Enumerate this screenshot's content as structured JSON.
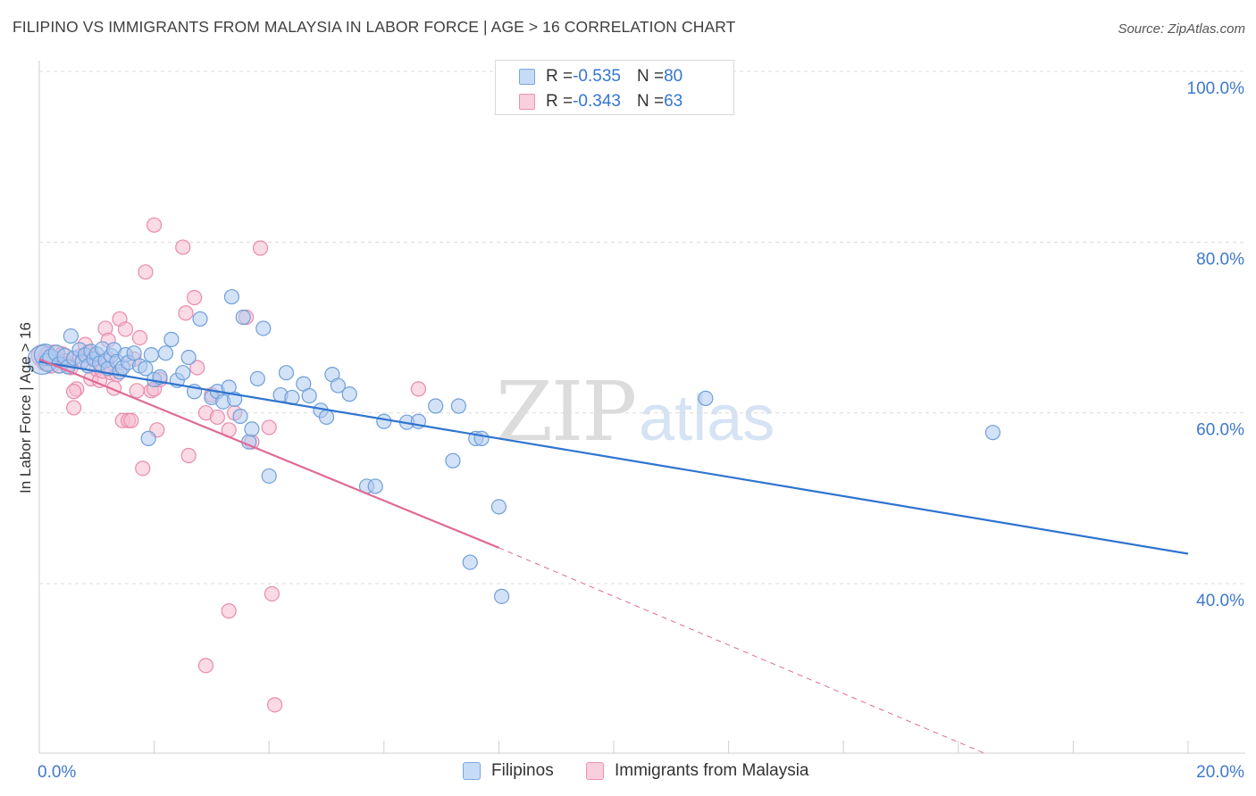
{
  "header": {
    "title": "FILIPINO VS IMMIGRANTS FROM MALAYSIA IN LABOR FORCE | AGE > 16 CORRELATION CHART",
    "source": "Source: ZipAtlas.com"
  },
  "legend": {
    "rows": [
      {
        "r_label": "R = ",
        "r_value": "-0.535",
        "n_label": "N = ",
        "n_value": "80"
      },
      {
        "r_label": "R = ",
        "r_value": "-0.343",
        "n_label": "N = ",
        "n_value": "63"
      }
    ]
  },
  "bottom_legend": [
    "Filipinos",
    "Immigrants from Malaysia"
  ],
  "watermark": {
    "part1": "ZIP",
    "part2": "atlas"
  },
  "colors": {
    "blue_fill": "#aecbf0",
    "blue_stroke": "#6f9fd8",
    "blue_line": "#2f74cf",
    "pink_fill": "#f5bcd0",
    "pink_stroke": "#e98aae",
    "pink_line": "#e06a96",
    "axis_label": "#3f78cc"
  },
  "chart_data": {
    "type": "scatter",
    "title": "FILIPINO VS IMMIGRANTS FROM MALAYSIA IN LABOR FORCE | AGE > 16 CORRELATION CHART",
    "xlabel": "",
    "ylabel": "In Labor Force | Age > 16",
    "xlim": [
      0,
      20
    ],
    "ylim": [
      20,
      102
    ],
    "x_tick_labels": [
      "0.0%",
      "20.0%"
    ],
    "y_ticks": [
      40,
      60,
      80,
      100
    ],
    "y_tick_labels": [
      "40.0%",
      "60.0%",
      "80.0%",
      "100.0%"
    ],
    "grid": "horizontal dashed",
    "series": [
      {
        "name": "Filipinos",
        "R": -0.535,
        "N": 80,
        "trend": {
          "x": [
            0,
            20
          ],
          "y": [
            66.0,
            43.5
          ],
          "dashed_after": null
        },
        "points": [
          {
            "x": 0.05,
            "y": 66.2,
            "s": 16
          },
          {
            "x": 0.1,
            "y": 66.8,
            "s": 12
          },
          {
            "x": 0.15,
            "y": 65.9,
            "s": 10
          },
          {
            "x": 0.2,
            "y": 66.5,
            "s": 9
          },
          {
            "x": 0.3,
            "y": 67.0,
            "s": 9
          },
          {
            "x": 0.35,
            "y": 65.6,
            "s": 9
          },
          {
            "x": 0.45,
            "y": 66.6,
            "s": 9
          },
          {
            "x": 0.5,
            "y": 65.4,
            "s": 8
          },
          {
            "x": 0.55,
            "y": 69.0,
            "s": 8
          },
          {
            "x": 0.6,
            "y": 66.4,
            "s": 8
          },
          {
            "x": 0.7,
            "y": 67.4,
            "s": 8
          },
          {
            "x": 0.75,
            "y": 66.0,
            "s": 8
          },
          {
            "x": 0.8,
            "y": 66.8,
            "s": 8
          },
          {
            "x": 0.85,
            "y": 65.5,
            "s": 8
          },
          {
            "x": 0.9,
            "y": 67.2,
            "s": 8
          },
          {
            "x": 0.95,
            "y": 66.3,
            "s": 8
          },
          {
            "x": 1.0,
            "y": 66.9,
            "s": 8
          },
          {
            "x": 1.05,
            "y": 65.8,
            "s": 8
          },
          {
            "x": 1.1,
            "y": 67.5,
            "s": 8
          },
          {
            "x": 1.15,
            "y": 66.1,
            "s": 8
          },
          {
            "x": 1.2,
            "y": 65.2,
            "s": 8
          },
          {
            "x": 1.25,
            "y": 66.7,
            "s": 8
          },
          {
            "x": 1.3,
            "y": 67.4,
            "s": 8
          },
          {
            "x": 1.35,
            "y": 66.0,
            "s": 8
          },
          {
            "x": 1.4,
            "y": 64.8,
            "s": 8
          },
          {
            "x": 1.45,
            "y": 65.3,
            "s": 8
          },
          {
            "x": 1.5,
            "y": 66.8,
            "s": 8
          },
          {
            "x": 1.55,
            "y": 65.9,
            "s": 8
          },
          {
            "x": 1.65,
            "y": 67.0,
            "s": 8
          },
          {
            "x": 1.75,
            "y": 65.5,
            "s": 8
          },
          {
            "x": 1.85,
            "y": 65.2,
            "s": 8
          },
          {
            "x": 1.95,
            "y": 66.8,
            "s": 8
          },
          {
            "x": 2.0,
            "y": 63.9,
            "s": 8
          },
          {
            "x": 2.1,
            "y": 64.2,
            "s": 8
          },
          {
            "x": 2.2,
            "y": 67.0,
            "s": 8
          },
          {
            "x": 2.3,
            "y": 68.6,
            "s": 8
          },
          {
            "x": 2.4,
            "y": 63.8,
            "s": 8
          },
          {
            "x": 2.5,
            "y": 64.7,
            "s": 8
          },
          {
            "x": 2.6,
            "y": 66.5,
            "s": 8
          },
          {
            "x": 2.7,
            "y": 62.5,
            "s": 8
          },
          {
            "x": 2.8,
            "y": 71.0,
            "s": 8
          },
          {
            "x": 3.0,
            "y": 61.8,
            "s": 8
          },
          {
            "x": 3.1,
            "y": 62.5,
            "s": 8
          },
          {
            "x": 3.2,
            "y": 61.3,
            "s": 8
          },
          {
            "x": 3.3,
            "y": 63.0,
            "s": 8
          },
          {
            "x": 3.35,
            "y": 73.6,
            "s": 8
          },
          {
            "x": 3.4,
            "y": 61.6,
            "s": 8
          },
          {
            "x": 3.5,
            "y": 59.6,
            "s": 8
          },
          {
            "x": 3.55,
            "y": 71.2,
            "s": 8
          },
          {
            "x": 3.65,
            "y": 56.6,
            "s": 8
          },
          {
            "x": 3.7,
            "y": 58.1,
            "s": 8
          },
          {
            "x": 3.8,
            "y": 64.0,
            "s": 8
          },
          {
            "x": 3.9,
            "y": 69.9,
            "s": 8
          },
          {
            "x": 4.0,
            "y": 52.6,
            "s": 8
          },
          {
            "x": 4.2,
            "y": 62.1,
            "s": 8
          },
          {
            "x": 4.3,
            "y": 64.7,
            "s": 8
          },
          {
            "x": 4.4,
            "y": 61.8,
            "s": 8
          },
          {
            "x": 4.6,
            "y": 63.4,
            "s": 8
          },
          {
            "x": 4.7,
            "y": 62.0,
            "s": 8
          },
          {
            "x": 4.9,
            "y": 60.3,
            "s": 8
          },
          {
            "x": 5.0,
            "y": 59.5,
            "s": 8
          },
          {
            "x": 5.1,
            "y": 64.5,
            "s": 8
          },
          {
            "x": 5.2,
            "y": 63.2,
            "s": 8
          },
          {
            "x": 5.4,
            "y": 62.2,
            "s": 8
          },
          {
            "x": 5.7,
            "y": 51.4,
            "s": 8
          },
          {
            "x": 5.85,
            "y": 51.4,
            "s": 8
          },
          {
            "x": 6.0,
            "y": 59.0,
            "s": 8
          },
          {
            "x": 6.4,
            "y": 58.9,
            "s": 8
          },
          {
            "x": 6.6,
            "y": 59.0,
            "s": 8
          },
          {
            "x": 6.9,
            "y": 60.8,
            "s": 8
          },
          {
            "x": 7.2,
            "y": 54.4,
            "s": 8
          },
          {
            "x": 7.3,
            "y": 60.8,
            "s": 8
          },
          {
            "x": 7.6,
            "y": 57.0,
            "s": 8
          },
          {
            "x": 7.7,
            "y": 57.0,
            "s": 8
          },
          {
            "x": 7.5,
            "y": 42.5,
            "s": 8
          },
          {
            "x": 8.0,
            "y": 49.0,
            "s": 8
          },
          {
            "x": 8.05,
            "y": 38.5,
            "s": 8
          },
          {
            "x": 11.6,
            "y": 61.7,
            "s": 8
          },
          {
            "x": 16.6,
            "y": 57.7,
            "s": 8
          },
          {
            "x": 1.9,
            "y": 57.0,
            "s": 8
          }
        ]
      },
      {
        "name": "Immigrants from Malaysia",
        "R": -0.343,
        "N": 63,
        "trend": {
          "x": [
            0,
            8.0,
            16.5
          ],
          "y": [
            66.3,
            44.2,
            20.0
          ],
          "dashed_after": 8.0
        },
        "points": [
          {
            "x": 0.05,
            "y": 66.7,
            "s": 12
          },
          {
            "x": 0.1,
            "y": 66.0,
            "s": 10
          },
          {
            "x": 0.15,
            "y": 66.8,
            "s": 9
          },
          {
            "x": 0.2,
            "y": 65.6,
            "s": 9
          },
          {
            "x": 0.25,
            "y": 67.0,
            "s": 9
          },
          {
            "x": 0.3,
            "y": 66.3,
            "s": 9
          },
          {
            "x": 0.35,
            "y": 65.6,
            "s": 9
          },
          {
            "x": 0.4,
            "y": 66.9,
            "s": 8
          },
          {
            "x": 0.45,
            "y": 66.1,
            "s": 8
          },
          {
            "x": 0.5,
            "y": 65.7,
            "s": 8
          },
          {
            "x": 0.55,
            "y": 65.3,
            "s": 8
          },
          {
            "x": 0.6,
            "y": 60.6,
            "s": 8
          },
          {
            "x": 0.65,
            "y": 62.8,
            "s": 8
          },
          {
            "x": 0.7,
            "y": 66.6,
            "s": 8
          },
          {
            "x": 0.75,
            "y": 66.2,
            "s": 8
          },
          {
            "x": 0.8,
            "y": 68.0,
            "s": 8
          },
          {
            "x": 0.85,
            "y": 67.1,
            "s": 8
          },
          {
            "x": 0.9,
            "y": 64.0,
            "s": 8
          },
          {
            "x": 0.95,
            "y": 66.5,
            "s": 8
          },
          {
            "x": 1.0,
            "y": 65.1,
            "s": 8
          },
          {
            "x": 1.05,
            "y": 63.8,
            "s": 8
          },
          {
            "x": 1.1,
            "y": 64.9,
            "s": 8
          },
          {
            "x": 1.15,
            "y": 69.9,
            "s": 8
          },
          {
            "x": 1.2,
            "y": 66.3,
            "s": 8
          },
          {
            "x": 1.25,
            "y": 64.7,
            "s": 8
          },
          {
            "x": 1.3,
            "y": 62.9,
            "s": 8
          },
          {
            "x": 1.35,
            "y": 64.5,
            "s": 8
          },
          {
            "x": 1.4,
            "y": 71.0,
            "s": 8
          },
          {
            "x": 1.45,
            "y": 59.1,
            "s": 8
          },
          {
            "x": 1.5,
            "y": 69.8,
            "s": 8
          },
          {
            "x": 1.55,
            "y": 59.1,
            "s": 8
          },
          {
            "x": 1.6,
            "y": 59.1,
            "s": 8
          },
          {
            "x": 1.65,
            "y": 66.3,
            "s": 8
          },
          {
            "x": 1.7,
            "y": 62.6,
            "s": 8
          },
          {
            "x": 1.75,
            "y": 68.8,
            "s": 8
          },
          {
            "x": 1.8,
            "y": 53.5,
            "s": 8
          },
          {
            "x": 1.85,
            "y": 76.5,
            "s": 8
          },
          {
            "x": 1.95,
            "y": 62.6,
            "s": 8
          },
          {
            "x": 2.0,
            "y": 62.8,
            "s": 8
          },
          {
            "x": 2.05,
            "y": 58.0,
            "s": 8
          },
          {
            "x": 2.1,
            "y": 63.9,
            "s": 8
          },
          {
            "x": 2.0,
            "y": 82.0,
            "s": 8
          },
          {
            "x": 2.5,
            "y": 79.4,
            "s": 8
          },
          {
            "x": 2.55,
            "y": 71.7,
            "s": 8
          },
          {
            "x": 2.6,
            "y": 55.0,
            "s": 8
          },
          {
            "x": 2.7,
            "y": 73.5,
            "s": 8
          },
          {
            "x": 2.75,
            "y": 65.3,
            "s": 8
          },
          {
            "x": 2.9,
            "y": 60.0,
            "s": 8
          },
          {
            "x": 3.0,
            "y": 62.1,
            "s": 8
          },
          {
            "x": 3.1,
            "y": 59.5,
            "s": 8
          },
          {
            "x": 3.3,
            "y": 58.0,
            "s": 8
          },
          {
            "x": 3.4,
            "y": 60.0,
            "s": 8
          },
          {
            "x": 3.6,
            "y": 71.2,
            "s": 8
          },
          {
            "x": 3.7,
            "y": 56.6,
            "s": 8
          },
          {
            "x": 3.85,
            "y": 79.3,
            "s": 8
          },
          {
            "x": 4.0,
            "y": 58.3,
            "s": 8
          },
          {
            "x": 3.3,
            "y": 36.8,
            "s": 8
          },
          {
            "x": 4.05,
            "y": 38.8,
            "s": 8
          },
          {
            "x": 2.9,
            "y": 30.4,
            "s": 8
          },
          {
            "x": 4.1,
            "y": 25.8,
            "s": 8
          },
          {
            "x": 6.6,
            "y": 62.8,
            "s": 8
          },
          {
            "x": 0.6,
            "y": 62.5,
            "s": 8
          },
          {
            "x": 1.2,
            "y": 68.5,
            "s": 8
          }
        ]
      }
    ]
  }
}
